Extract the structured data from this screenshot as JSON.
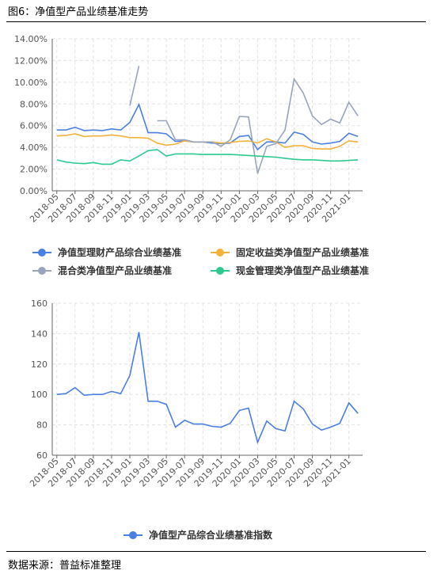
{
  "figure": {
    "title": "图6：净值型产品业绩基准走势",
    "source": "数据来源：普益标准整理"
  },
  "chart_data": [
    {
      "type": "line",
      "x": [
        "2018-05",
        "2018-06",
        "2018-07",
        "2018-08",
        "2018-09",
        "2018-10",
        "2018-11",
        "2018-12",
        "2019-01",
        "2019-02",
        "2019-03",
        "2019-04",
        "2019-05",
        "2019-06",
        "2019-07",
        "2019-08",
        "2019-09",
        "2019-10",
        "2019-11",
        "2019-12",
        "2020-01",
        "2020-02",
        "2020-03",
        "2020-04",
        "2020-05",
        "2020-06",
        "2020-07",
        "2020-08",
        "2020-09",
        "2020-10",
        "2020-11",
        "2020-12",
        "2021-01",
        "2021-02"
      ],
      "tick_labels": [
        "2018-05",
        "2018-07",
        "2018-09",
        "2018-11",
        "2019-01",
        "2019-03",
        "2019-05",
        "2019-07",
        "2019-09",
        "2019-11",
        "2020-01",
        "2020-03",
        "2020-05",
        "2020-07",
        "2020-09",
        "2020-11",
        "2021-01"
      ],
      "y_ticks": [
        "0.00%",
        "2.00%",
        "4.00%",
        "6.00%",
        "8.00%",
        "10.00%",
        "12.00%",
        "14.00%"
      ],
      "ylim": [
        0,
        14
      ],
      "y_unit": "%",
      "grid": true,
      "legend_position": "bottom",
      "series": [
        {
          "name": "净值型理财产品综合业绩基准",
          "color": "#4a7fe3",
          "values": [
            5.6,
            5.6,
            5.85,
            5.55,
            5.6,
            5.55,
            5.7,
            5.6,
            6.3,
            7.95,
            5.35,
            5.35,
            5.25,
            4.55,
            4.6,
            4.5,
            4.5,
            4.4,
            4.35,
            4.4,
            5.0,
            5.1,
            3.8,
            4.5,
            4.5,
            4.4,
            5.4,
            5.2,
            4.5,
            4.3,
            4.4,
            4.55,
            5.3,
            5.0
          ]
        },
        {
          "name": "固定收益类净值型产品业绩基准",
          "color": "#f3b23b",
          "values": [
            5.05,
            5.1,
            5.25,
            5.0,
            5.05,
            5.05,
            5.15,
            5.05,
            4.9,
            4.9,
            4.85,
            4.4,
            4.2,
            4.3,
            4.6,
            4.5,
            4.5,
            4.5,
            4.4,
            4.45,
            4.55,
            4.6,
            4.4,
            4.8,
            4.5,
            4.0,
            4.15,
            4.15,
            3.9,
            3.85,
            3.85,
            4.1,
            4.6,
            4.5
          ]
        },
        {
          "name": "混合类净值型产品业绩基准",
          "color": "#98a5bc",
          "values": [
            null,
            null,
            null,
            null,
            null,
            null,
            null,
            null,
            7.85,
            11.5,
            null,
            6.45,
            6.45,
            4.7,
            4.7,
            4.5,
            4.5,
            4.5,
            4.1,
            4.7,
            6.85,
            6.8,
            1.6,
            4.1,
            4.35,
            5.6,
            10.3,
            9.0,
            6.9,
            6.1,
            6.6,
            6.25,
            8.15,
            6.9
          ]
        },
        {
          "name": "现金管理类净值型产品业绩基准",
          "color": "#2ec98f",
          "values": [
            2.85,
            2.65,
            2.55,
            2.5,
            2.6,
            2.45,
            2.45,
            2.85,
            2.75,
            3.2,
            3.7,
            3.8,
            3.2,
            3.4,
            3.4,
            3.4,
            3.35,
            3.35,
            3.35,
            3.35,
            3.3,
            3.25,
            3.2,
            3.15,
            3.1,
            3.0,
            2.9,
            2.85,
            2.85,
            2.8,
            2.75,
            2.75,
            2.8,
            2.85
          ]
        }
      ]
    },
    {
      "type": "line",
      "x": [
        "2018-05",
        "2018-06",
        "2018-07",
        "2018-08",
        "2018-09",
        "2018-10",
        "2018-11",
        "2018-12",
        "2019-01",
        "2019-02",
        "2019-03",
        "2019-04",
        "2019-05",
        "2019-06",
        "2019-07",
        "2019-08",
        "2019-09",
        "2019-10",
        "2019-11",
        "2019-12",
        "2020-01",
        "2020-02",
        "2020-03",
        "2020-04",
        "2020-05",
        "2020-06",
        "2020-07",
        "2020-08",
        "2020-09",
        "2020-10",
        "2020-11",
        "2020-12",
        "2021-01",
        "2021-02"
      ],
      "tick_labels": [
        "2018-05",
        "2018-07",
        "2018-09",
        "2018-11",
        "2019-01",
        "2019-03",
        "2019-05",
        "2019-07",
        "2019-09",
        "2019-11",
        "2020-01",
        "2020-03",
        "2020-05",
        "2020-07",
        "2020-09",
        "2020-11",
        "2021-01"
      ],
      "y_ticks": [
        "60",
        "80",
        "100",
        "120",
        "140",
        "160"
      ],
      "ylim": [
        60,
        160
      ],
      "grid": true,
      "legend_position": "bottom",
      "series": [
        {
          "name": "净值型产品综合业绩基准指数",
          "color": "#4a7fe3",
          "values": [
            100,
            100.5,
            104.5,
            99.5,
            100,
            100,
            102,
            100.5,
            112.5,
            141,
            95.5,
            95.5,
            93.5,
            78.5,
            83,
            80.5,
            80.5,
            79,
            78.5,
            81,
            89.5,
            91,
            68.5,
            82.5,
            77.5,
            76,
            95.5,
            90.5,
            80.5,
            76.5,
            78.5,
            81,
            94.5,
            87.5
          ]
        }
      ]
    }
  ]
}
